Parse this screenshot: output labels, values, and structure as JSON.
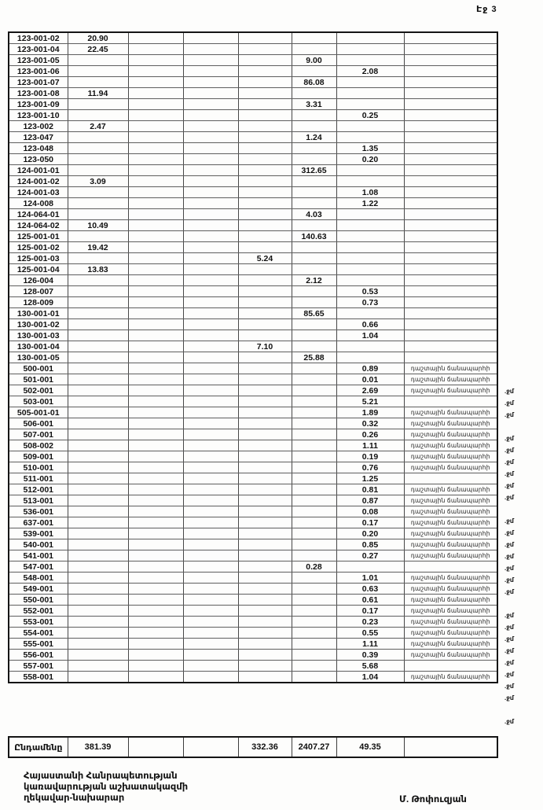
{
  "page": {
    "header": "Էջ 3"
  },
  "table": {
    "label_text": "դաշտային ճանապարհի",
    "annotation_text": ".ջմ",
    "rows": [
      {
        "id": "123-001-02",
        "c2": "20.90"
      },
      {
        "id": "123-001-04",
        "c2": "22.45"
      },
      {
        "id": "123-001-05",
        "c6": "9.00"
      },
      {
        "id": "123-001-06",
        "c7": "2.08"
      },
      {
        "id": "123-001-07",
        "c6": "86.08"
      },
      {
        "id": "123-001-08",
        "c2": "11.94"
      },
      {
        "id": "123-001-09",
        "c6": "3.31"
      },
      {
        "id": "123-001-10",
        "c7": "0.25"
      },
      {
        "id": "123-002",
        "c2": "2.47"
      },
      {
        "id": "123-047",
        "c6": "1.24"
      },
      {
        "id": "123-048",
        "c7": "1.35"
      },
      {
        "id": "123-050",
        "c7": "0.20"
      },
      {
        "id": "124-001-01",
        "c6": "312.65"
      },
      {
        "id": "124-001-02",
        "c2": "3.09"
      },
      {
        "id": "124-001-03",
        "c7": "1.08"
      },
      {
        "id": "124-008",
        "c7": "1.22"
      },
      {
        "id": "124-064-01",
        "c6": "4.03"
      },
      {
        "id": "124-064-02",
        "c2": "10.49"
      },
      {
        "id": "125-001-01",
        "c6": "140.63"
      },
      {
        "id": "125-001-02",
        "c2": "19.42"
      },
      {
        "id": "125-001-03",
        "c5": "5.24"
      },
      {
        "id": "125-001-04",
        "c2": "13.83"
      },
      {
        "id": "126-004",
        "c6": "2.12"
      },
      {
        "id": "128-007",
        "c7": "0.53"
      },
      {
        "id": "128-009",
        "c7": "0.73"
      },
      {
        "id": "130-001-01",
        "c6": "85.65"
      },
      {
        "id": "130-001-02",
        "c7": "0.66"
      },
      {
        "id": "130-001-03",
        "c7": "1.04"
      },
      {
        "id": "130-001-04",
        "c5": "7.10"
      },
      {
        "id": "130-001-05",
        "c6": "25.88"
      },
      {
        "id": "500-001",
        "c7": "0.89",
        "lbl": true,
        "ann": true
      },
      {
        "id": "501-001",
        "c7": "0.01",
        "lbl": true,
        "ann": true
      },
      {
        "id": "502-001",
        "c7": "2.69",
        "lbl": true,
        "ann": true
      },
      {
        "id": "503-001",
        "c7": "5.21"
      },
      {
        "id": "505-001-01",
        "c7": "1.89",
        "lbl": true,
        "ann": true
      },
      {
        "id": "506-001",
        "c7": "0.32",
        "lbl": true,
        "ann": true
      },
      {
        "id": "507-001",
        "c7": "0.26",
        "lbl": true,
        "ann": true
      },
      {
        "id": "508-002",
        "c7": "1.11",
        "lbl": true,
        "ann": true
      },
      {
        "id": "509-001",
        "c7": "0.19",
        "lbl": true,
        "ann": true
      },
      {
        "id": "510-001",
        "c7": "0.76",
        "lbl": true,
        "ann": true
      },
      {
        "id": "511-001",
        "c7": "1.25"
      },
      {
        "id": "512-001",
        "c7": "0.81",
        "lbl": true,
        "ann": true
      },
      {
        "id": "513-001",
        "c7": "0.87",
        "lbl": true,
        "ann": true
      },
      {
        "id": "536-001",
        "c7": "0.08",
        "lbl": true,
        "ann": true
      },
      {
        "id": "637-001",
        "c7": "0.17",
        "lbl": true,
        "ann": true
      },
      {
        "id": "539-001",
        "c7": "0.20",
        "lbl": true,
        "ann": true
      },
      {
        "id": "540-001",
        "c7": "0.85",
        "lbl": true,
        "ann": true
      },
      {
        "id": "541-001",
        "c7": "0.27",
        "lbl": true,
        "ann": true
      },
      {
        "id": "547-001",
        "c6": "0.28"
      },
      {
        "id": "548-001",
        "c7": "1.01",
        "lbl": true,
        "ann": true
      },
      {
        "id": "549-001",
        "c7": "0.63",
        "lbl": true,
        "ann": true
      },
      {
        "id": "550-001",
        "c7": "0.61",
        "lbl": true,
        "ann": true
      },
      {
        "id": "552-001",
        "c7": "0.17",
        "lbl": true,
        "ann": true
      },
      {
        "id": "553-001",
        "c7": "0.23",
        "lbl": true,
        "ann": true
      },
      {
        "id": "554-001",
        "c7": "0.55",
        "lbl": true,
        "ann": true
      },
      {
        "id": "555-001",
        "c7": "1.11",
        "lbl": true,
        "ann": true
      },
      {
        "id": "556-001",
        "c7": "0.39",
        "lbl": true,
        "ann": true
      },
      {
        "id": "557-001",
        "c7": "5.68"
      },
      {
        "id": "558-001",
        "c7": "1.04",
        "lbl": true,
        "ann": true
      }
    ],
    "total": {
      "label": "Ընդամենը",
      "c2": "381.39",
      "c5": "332.36",
      "c6": "2407.27",
      "c7": "49.35"
    }
  },
  "footer": {
    "line1": "Հայաստանի Հանրապետության",
    "line2": "կառավարության աշխատակազմի",
    "line3": "ղեկավար-նախարար",
    "signature": "Մ. Թոփուզյան"
  }
}
